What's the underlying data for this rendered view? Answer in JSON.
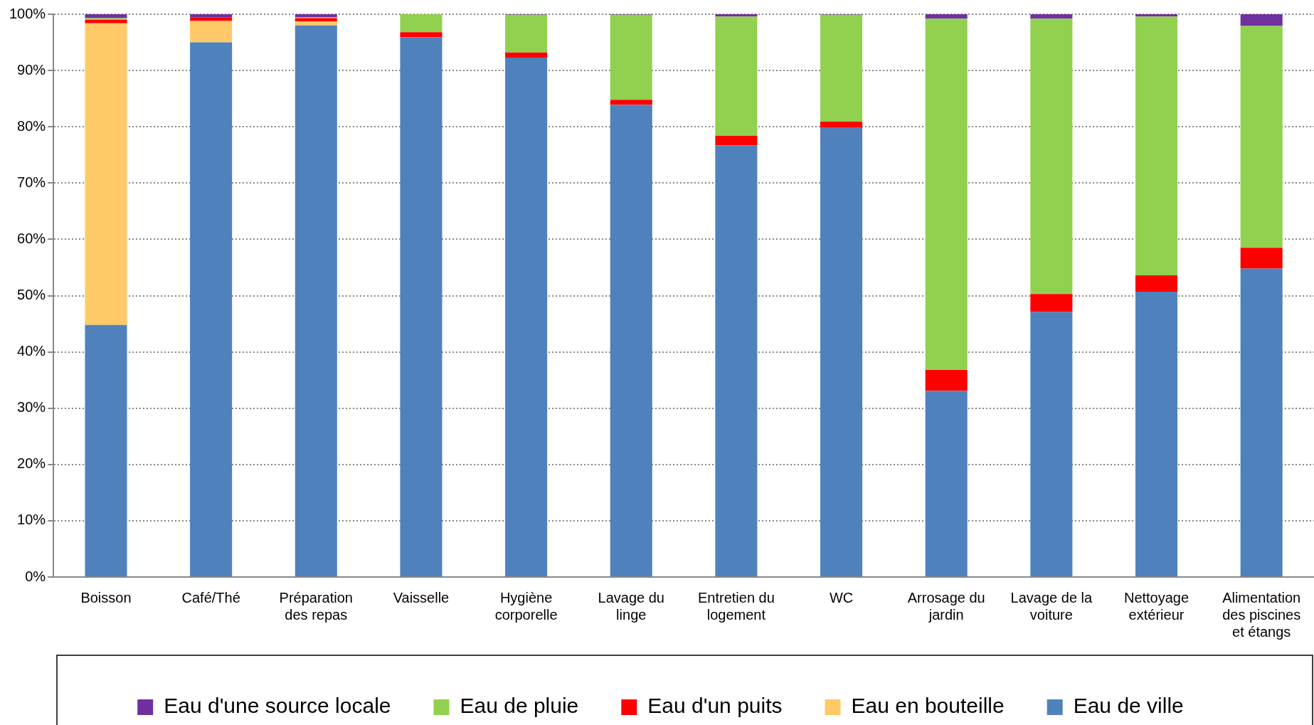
{
  "chart_data": {
    "type": "bar",
    "stacked": true,
    "categories": [
      "Boisson",
      "Café/Thé",
      "Préparation des repas",
      "Vaisselle",
      "Hygiène corporelle",
      "Lavage du linge",
      "Entretien du logement",
      "WC",
      "Arrosage du jardin",
      "Lavage de la voiture",
      "Nettoyage extérieur",
      "Alimentation des piscines et étangs"
    ],
    "series": [
      {
        "name": "Eau de ville",
        "color": "#4f81bd",
        "values": [
          44.8,
          95.0,
          98.0,
          95.9,
          92.3,
          83.9,
          76.7,
          79.8,
          33.1,
          47.1,
          50.7,
          54.8
        ]
      },
      {
        "name": "Eau en bouteille",
        "color": "#fec966",
        "values": [
          53.6,
          3.8,
          0.7,
          0,
          0,
          0,
          0,
          0,
          0,
          0,
          0,
          0
        ]
      },
      {
        "name": "Eau d'un puits",
        "color": "#ff0000",
        "values": [
          0.6,
          0.6,
          0.6,
          0.9,
          0.9,
          0.9,
          1.7,
          1.1,
          3.7,
          3.2,
          2.9,
          3.7
        ]
      },
      {
        "name": "Eau de pluie",
        "color": "#92d050",
        "values": [
          0.3,
          0,
          0.2,
          3.2,
          6.7,
          15.1,
          21.2,
          19.0,
          62.4,
          48.9,
          46.0,
          39.4
        ]
      },
      {
        "name": "Eau d'une source locale",
        "color": "#7030a0",
        "values": [
          0.7,
          0.6,
          0.5,
          0,
          0.1,
          0.1,
          0.4,
          0.1,
          0.8,
          0.8,
          0.4,
          2.1
        ]
      }
    ],
    "ylim": [
      0,
      100
    ],
    "yticks": [
      {
        "value": 0,
        "label": "0%"
      },
      {
        "value": 10,
        "label": "10%"
      },
      {
        "value": 20,
        "label": "20%"
      },
      {
        "value": 30,
        "label": "30%"
      },
      {
        "value": 40,
        "label": "40%"
      },
      {
        "value": 50,
        "label": "50%"
      },
      {
        "value": 60,
        "label": "60%"
      },
      {
        "value": 70,
        "label": "70%"
      },
      {
        "value": 80,
        "label": "80%"
      },
      {
        "value": 90,
        "label": "90%"
      },
      {
        "value": 100,
        "label": "100%"
      }
    ],
    "grid": "y",
    "legend": "bottom"
  }
}
